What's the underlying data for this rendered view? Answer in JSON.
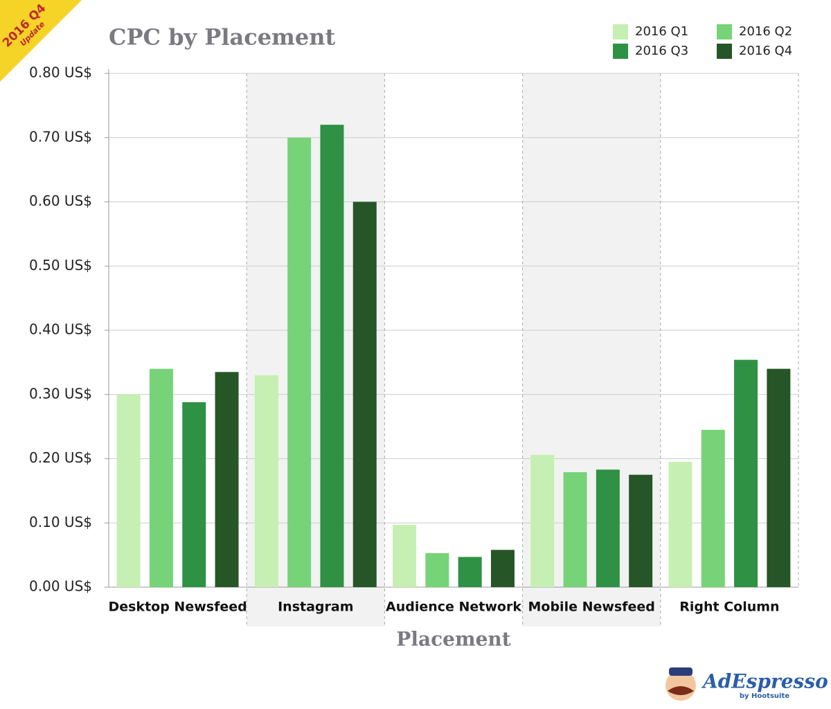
{
  "chart_data": {
    "type": "bar",
    "title": "CPC by Placement",
    "x_label": "Placement",
    "categories": [
      "Desktop Newsfeed",
      "Instagram",
      "Audience Network",
      "Mobile Newsfeed",
      "Right Column"
    ],
    "series": [
      {
        "name": "2016 Q1",
        "color": "#c6efb3",
        "values": [
          0.3,
          0.33,
          0.097,
          0.206,
          0.195
        ]
      },
      {
        "name": "2016 Q2",
        "color": "#77d377",
        "values": [
          0.34,
          0.7,
          0.053,
          0.179,
          0.245
        ]
      },
      {
        "name": "2016 Q3",
        "color": "#2e9144",
        "values": [
          0.288,
          0.72,
          0.047,
          0.183,
          0.354
        ]
      },
      {
        "name": "2016 Q4",
        "color": "#265627",
        "values": [
          0.335,
          0.6,
          0.058,
          0.175,
          0.34
        ]
      }
    ],
    "ylim": [
      0,
      0.8
    ],
    "yticks": [
      {
        "value": 0,
        "label": "0.00 US$"
      },
      {
        "value": 0.1,
        "label": "0.10 US$"
      },
      {
        "value": 0.2,
        "label": "0.20 US$"
      },
      {
        "value": 0.3,
        "label": "0.30 US$"
      },
      {
        "value": 0.4,
        "label": "0.40 US$"
      },
      {
        "value": 0.5,
        "label": "0.50 US$"
      },
      {
        "value": 0.6,
        "label": "0.60 US$"
      },
      {
        "value": 0.7,
        "label": "0.70 US$"
      },
      {
        "value": 0.8,
        "label": "0.80 US$"
      }
    ],
    "grid": true,
    "legend": "top-right"
  },
  "badge": {
    "title": "2016 Q4",
    "subtitle": "Update"
  },
  "logo": {
    "brand": "AdEspresso",
    "tagline": "by Hootsuite"
  }
}
